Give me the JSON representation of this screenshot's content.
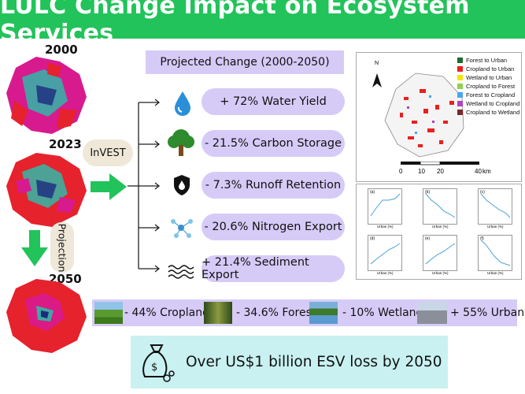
{
  "title": "LULC Change Impact on Ecosystem Services",
  "years": [
    "2000",
    "2023",
    "2050"
  ],
  "model_label": "InVEST",
  "projection_label": "Projection",
  "projected_header": "Projected Change (2000-2050)",
  "services": [
    {
      "label": "+ 72% Water Yield",
      "icon": "water-drop-icon"
    },
    {
      "label": "- 21.5% Carbon Storage",
      "icon": "tree-icon"
    },
    {
      "label": "- 7.3% Runoff Retention",
      "icon": "shield-drop-icon"
    },
    {
      "label": "- 20.6% Nitrogen Export",
      "icon": "molecule-icon"
    },
    {
      "label": "+ 21.4% Sediment Export",
      "icon": "waves-icon"
    }
  ],
  "lulc_changes": [
    {
      "label": "- 44% Cropland",
      "icon": "cropland-photo"
    },
    {
      "label": "- 34.6% Forest",
      "icon": "forest-photo"
    },
    {
      "label": "- 10% Wetland",
      "icon": "wetland-photo"
    },
    {
      "label": "+ 55% Urban",
      "icon": "urban-photo"
    }
  ],
  "esv_loss": "Over US$1 billion ESV loss by 2050",
  "map_legend": [
    {
      "label": "Forest to Urban",
      "color": "#1e6b2e"
    },
    {
      "label": "Cropland to Urban",
      "color": "#e8201f"
    },
    {
      "label": "Wetland to Urban",
      "color": "#f2e600"
    },
    {
      "label": "Cropland to Forest",
      "color": "#8fd14f"
    },
    {
      "label": "Forest to Cropland",
      "color": "#47a7f0"
    },
    {
      "label": "Wetland to Cropland",
      "color": "#b040c8"
    },
    {
      "label": "Cropland to Wetland",
      "color": "#7a2a2a"
    }
  ],
  "scale_labels": [
    "0",
    "10",
    "20",
    "40",
    "km"
  ],
  "north_label": "N",
  "mini_plots": [
    {
      "tag": "(a)",
      "xlabel": "Urban (%)"
    },
    {
      "tag": "(b)",
      "xlabel": "Urban (%)"
    },
    {
      "tag": "(c)",
      "xlabel": "Urban (%)"
    },
    {
      "tag": "(d)",
      "xlabel": "Urban (%)"
    },
    {
      "tag": "(e)",
      "xlabel": "Urban (%)"
    },
    {
      "tag": "(f)",
      "xlabel": "Urban (%)"
    }
  ],
  "colors": {
    "title_bg": "#22c35a",
    "pill": "#d6cbf7",
    "arrow": "#22c35a",
    "esv_box": "#c9f1f1"
  }
}
